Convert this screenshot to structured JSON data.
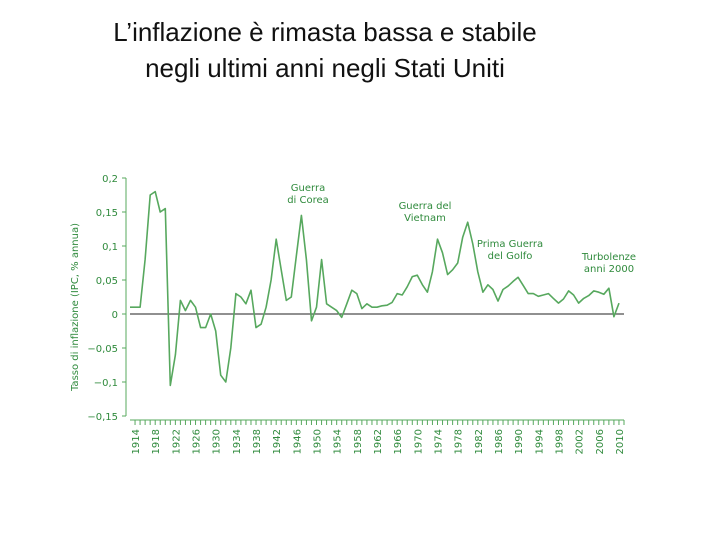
{
  "title_lines": [
    "L’inflazione è rimasta bassa e stabile",
    "negli ultimi anni negli Stati Uniti"
  ],
  "colors": {
    "line": "#57a85e",
    "text": "#2f8a3c",
    "zero_line": "#222222"
  },
  "chart_data": {
    "type": "line",
    "ylabel": "Tasso di inflazione (IPC, % annua)",
    "xlabel": "",
    "ylim": [
      -0.15,
      0.2
    ],
    "y_ticks": [
      {
        "value": 0.2,
        "label": "0,2"
      },
      {
        "value": 0.15,
        "label": "0,15"
      },
      {
        "value": 0.1,
        "label": "0,1"
      },
      {
        "value": 0.05,
        "label": "0,05"
      },
      {
        "value": 0,
        "label": "0"
      },
      {
        "value": -0.05,
        "label": "−0,05"
      },
      {
        "value": -0.1,
        "label": "−0,1"
      },
      {
        "value": -0.15,
        "label": "−0,15"
      }
    ],
    "xlim": [
      1913,
      2011
    ],
    "x_ticks": [
      "1914",
      "1918",
      "1922",
      "1926",
      "1930",
      "1934",
      "1938",
      "1942",
      "1946",
      "1950",
      "1954",
      "1958",
      "1962",
      "1966",
      "1970",
      "1974",
      "1978",
      "1982",
      "1986",
      "1990",
      "1994",
      "1998",
      "2002",
      "2006",
      "2010"
    ],
    "series": [
      {
        "x": [
          1913,
          1914,
          1915,
          1916,
          1917,
          1918,
          1919,
          1920,
          1921,
          1922,
          1923,
          1924,
          1925,
          1926,
          1927,
          1928,
          1929,
          1930,
          1931,
          1932,
          1933,
          1934,
          1935,
          1936,
          1937,
          1938,
          1939,
          1940,
          1941,
          1942,
          1943,
          1944,
          1945,
          1946,
          1947,
          1948,
          1949,
          1950,
          1951,
          1952,
          1953,
          1954,
          1955,
          1956,
          1957,
          1958,
          1959,
          1960,
          1961,
          1962,
          1963,
          1964,
          1965,
          1966,
          1967,
          1968,
          1969,
          1970,
          1971,
          1972,
          1973,
          1974,
          1975,
          1976,
          1977,
          1978,
          1979,
          1980,
          1981,
          1982,
          1983,
          1984,
          1985,
          1986,
          1987,
          1988,
          1989,
          1990,
          1991,
          1992,
          1993,
          1994,
          1995,
          1996,
          1997,
          1998,
          1999,
          2000,
          2001,
          2002,
          2003,
          2004,
          2005,
          2006,
          2007,
          2008,
          2009,
          2010
        ],
        "y": [
          0.01,
          0.01,
          0.01,
          0.08,
          0.175,
          0.18,
          0.15,
          0.155,
          -0.105,
          -0.06,
          0.02,
          0.005,
          0.02,
          0.01,
          -0.02,
          -0.02,
          0.0,
          -0.025,
          -0.09,
          -0.1,
          -0.05,
          0.03,
          0.025,
          0.015,
          0.035,
          -0.02,
          -0.015,
          0.01,
          0.05,
          0.11,
          0.065,
          0.02,
          0.025,
          0.085,
          0.145,
          0.08,
          -0.01,
          0.01,
          0.08,
          0.015,
          0.01,
          0.005,
          -0.005,
          0.015,
          0.035,
          0.03,
          0.008,
          0.015,
          0.01,
          0.01,
          0.012,
          0.013,
          0.017,
          0.03,
          0.028,
          0.04,
          0.055,
          0.057,
          0.043,
          0.032,
          0.062,
          0.11,
          0.09,
          0.058,
          0.065,
          0.075,
          0.113,
          0.135,
          0.103,
          0.062,
          0.032,
          0.043,
          0.036,
          0.019,
          0.036,
          0.041,
          0.048,
          0.054,
          0.042,
          0.03,
          0.03,
          0.026,
          0.028,
          0.03,
          0.023,
          0.016,
          0.022,
          0.034,
          0.028,
          0.016,
          0.023,
          0.027,
          0.034,
          0.032,
          0.029,
          0.038,
          -0.004,
          0.016
        ]
      }
    ],
    "annotations": [
      {
        "lines": [
          "Guerra",
          "di Corea"
        ]
      },
      {
        "lines": [
          "Guerra del",
          "Vietnam"
        ]
      },
      {
        "lines": [
          "Prima Guerra",
          "del Golfo"
        ]
      },
      {
        "lines": [
          "Turbolenze",
          "anni 2000"
        ]
      }
    ]
  }
}
